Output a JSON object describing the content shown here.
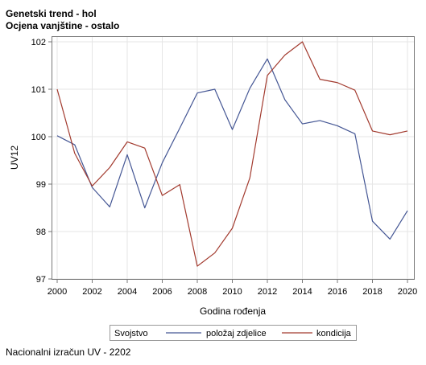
{
  "header": {
    "title": "Genetski trend - hol",
    "subtitle": "Ocjena vanjštine - ostalo"
  },
  "footer": {
    "text": "Nacionalni izračun UV - 2202"
  },
  "chart_data": {
    "type": "line",
    "xlabel": "Godina rođenja",
    "ylabel": "UV12",
    "xlim": [
      2000,
      2020
    ],
    "ylim": [
      97,
      102
    ],
    "xticks": [
      2000,
      2002,
      2004,
      2006,
      2008,
      2010,
      2012,
      2014,
      2016,
      2018,
      2020
    ],
    "yticks": [
      97,
      98,
      99,
      100,
      101,
      102
    ],
    "grid": true,
    "legend": {
      "title": "Svojstvo",
      "position": "bottom"
    },
    "x": [
      2000,
      2001,
      2002,
      2003,
      2004,
      2005,
      2006,
      2007,
      2008,
      2009,
      2010,
      2011,
      2012,
      2013,
      2014,
      2015,
      2016,
      2017,
      2018,
      2019,
      2020
    ],
    "series": [
      {
        "name": "položaj zdjelice",
        "color": "#445694",
        "values": [
          100.02,
          99.83,
          98.93,
          98.52,
          99.62,
          98.5,
          99.45,
          100.18,
          100.92,
          101.0,
          100.15,
          101.02,
          101.64,
          100.78,
          100.27,
          100.34,
          100.23,
          100.06,
          98.22,
          97.84,
          98.44
        ]
      },
      {
        "name": "kondicija",
        "color": "#A23A2E",
        "values": [
          101.0,
          99.65,
          98.96,
          99.35,
          99.89,
          99.76,
          98.76,
          98.99,
          97.27,
          97.55,
          98.07,
          99.13,
          101.29,
          101.72,
          102.0,
          101.21,
          101.14,
          100.98,
          100.12,
          100.04,
          100.12
        ]
      }
    ]
  }
}
